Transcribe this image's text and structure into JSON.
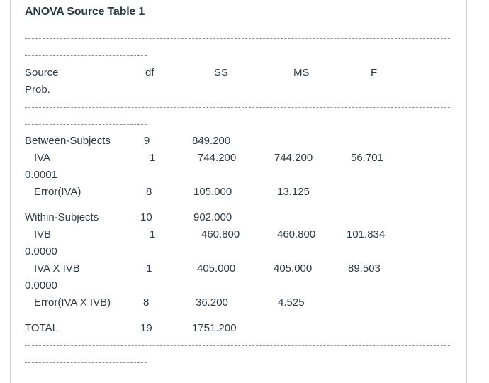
{
  "title": "ANOVA Source Table 1",
  "headers": {
    "source": "Source",
    "df": "df",
    "ss": "SS",
    "ms": "MS",
    "f": "F",
    "prob": "Prob."
  },
  "rows": [
    {
      "source": "Between-Subjects",
      "df": "9",
      "ss": "849.200",
      "ms": "",
      "f": "",
      "prob": ""
    },
    {
      "source": "IVA",
      "df": "1",
      "ss": "744.200",
      "ms": "744.200",
      "f": "56.701",
      "prob": "0.0001"
    },
    {
      "source": "Error(IVA)",
      "df": "8",
      "ss": "105.000",
      "ms": "13.125",
      "f": "",
      "prob": ""
    },
    {
      "source": "Within-Subjects",
      "df": "10",
      "ss": "902.000",
      "ms": "",
      "f": "",
      "prob": ""
    },
    {
      "source": "IVB",
      "df": "1",
      "ss": "460.800",
      "ms": "460.800",
      "f": "101.834",
      "prob": "0.0000"
    },
    {
      "source": "IVA X IVB",
      "df": "1",
      "ss": "405.000",
      "ms": "405.000",
      "f": "89.503",
      "prob": "0.0000"
    },
    {
      "source": "Error(IVA X IVB)",
      "df": "8",
      "ss": "36.200",
      "ms": "4.525",
      "f": "",
      "prob": ""
    },
    {
      "source": "TOTAL",
      "df": "19",
      "ss": "1751.200",
      "ms": "",
      "f": "",
      "prob": ""
    }
  ]
}
